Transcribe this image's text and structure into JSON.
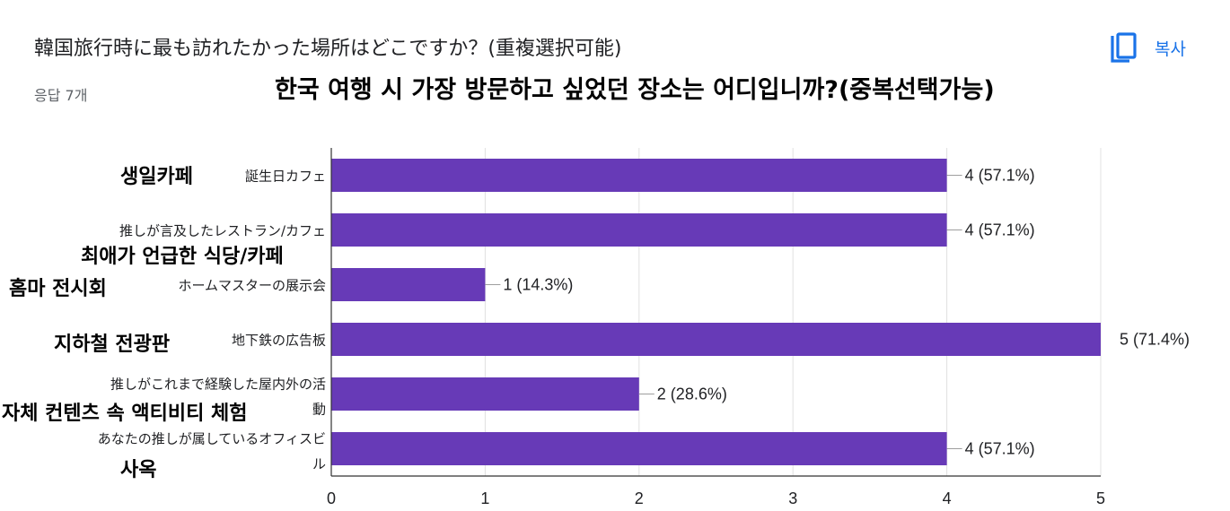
{
  "question": {
    "title": "韓国旅行時に最も訪れたかった場所はどこですか？(重複選択可能)",
    "responses": "응답 7개",
    "overlay_title": "한국 여행 시 가장 방문하고 싶었던 장소는 어디입니까?(중복선택가능)"
  },
  "copy_button": {
    "label": "복사",
    "icon": "copy-icon"
  },
  "colors": {
    "bar": "#673ab7",
    "accent": "#1a73e8",
    "axis": "#333333",
    "grid": "#e0e0e0"
  },
  "chart_data": {
    "type": "bar",
    "orientation": "horizontal",
    "categories": [
      "誕生日カフェ",
      "推しが言及したレストラン/カフェ",
      "ホームマスターの展示会",
      "地下鉄の広告板",
      "推しがこれまで経験した屋内外の活動",
      "あなたの推しが属しているオフィスビル"
    ],
    "category_lines": [
      [
        "誕生日カフェ"
      ],
      [
        "推しが言及したレストラン/カフェ"
      ],
      [
        "ホームマスターの展示会"
      ],
      [
        "地下鉄の広告板"
      ],
      [
        "推しがこれまで経験した屋内外の活",
        "動"
      ],
      [
        "あなたの推しが属しているオフィスビ",
        "ル"
      ]
    ],
    "korean_labels": [
      "생일카페",
      "최애가 언급한 식당/카페",
      "홈마 전시회",
      "지하철 전광판",
      "자체 컨텐츠 속 액티비티 체험",
      "사옥"
    ],
    "values": [
      4,
      4,
      1,
      5,
      2,
      4
    ],
    "value_labels": [
      "4 (57.1%)",
      "4 (57.1%)",
      "1 (14.3%)",
      "5 (71.4%)",
      "2 (28.6%)",
      "4 (57.1%)"
    ],
    "xlim": [
      0,
      5
    ],
    "xticks": [
      "0",
      "1",
      "2",
      "3",
      "4",
      "5"
    ],
    "grid": true
  }
}
